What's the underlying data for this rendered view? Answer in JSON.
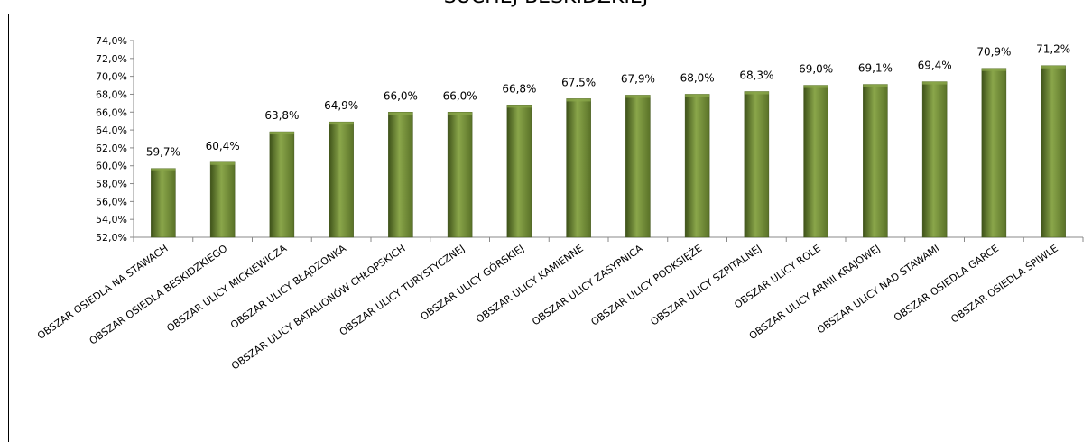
{
  "chart_data": {
    "type": "bar",
    "title": "SUCHEJ BESKIDZKIEJ",
    "categories": [
      "OBSZAR OSIEDLA NA STAWACH",
      "OBSZAR OSIEDLA BESKIDZKIEGO",
      "OBSZAR ULICY MICKIEWICZA",
      "OBSZAR ULICY BŁĄDZONKA",
      "OBSZAR ULICY BATALIONÓW CHŁOPSKICH",
      "OBSZAR ULICY TURYSTYCZNEJ",
      "OBSZAR ULICY GÓRSKIEJ",
      "OBSZAR ULICY KAMIENNE",
      "OBSZAR ULICY ZASYPNICA",
      "OBSZAR ULICY PODKSIĘŻE",
      "OBSZAR ULICY SZPITALNEJ",
      "OBSZAR ULICY ROLE",
      "OBSZAR ULICY ARMII KRAJOWEJ",
      "OBSZAR ULICY NAD STAWAMI",
      "OBSZAR OSIEDLA GARCE",
      "OBSZAR OSIEDLA ŚPIWLE"
    ],
    "values": [
      59.7,
      60.4,
      63.8,
      64.9,
      66.0,
      66.0,
      66.8,
      67.5,
      67.9,
      68.0,
      68.3,
      69.0,
      69.1,
      69.4,
      70.9,
      71.2
    ],
    "value_labels": [
      "59,7%",
      "60,4%",
      "63,8%",
      "64,9%",
      "66,0%",
      "66,0%",
      "66,8%",
      "67,5%",
      "67,9%",
      "68,0%",
      "68,3%",
      "69,0%",
      "69,1%",
      "69,4%",
      "70,9%",
      "71,2%"
    ],
    "y_ticks": [
      "52,0%",
      "54,0%",
      "56,0%",
      "58,0%",
      "60,0%",
      "62,0%",
      "64,0%",
      "66,0%",
      "68,0%",
      "70,0%",
      "72,0%",
      "74,0%"
    ],
    "ylim": [
      52,
      74
    ],
    "ytick_step": 2,
    "grid": false,
    "legend": "none",
    "bar_color": "#5a7228",
    "bar_color_light": "#8aa64a",
    "bar_color_dark": "#3e5219"
  }
}
